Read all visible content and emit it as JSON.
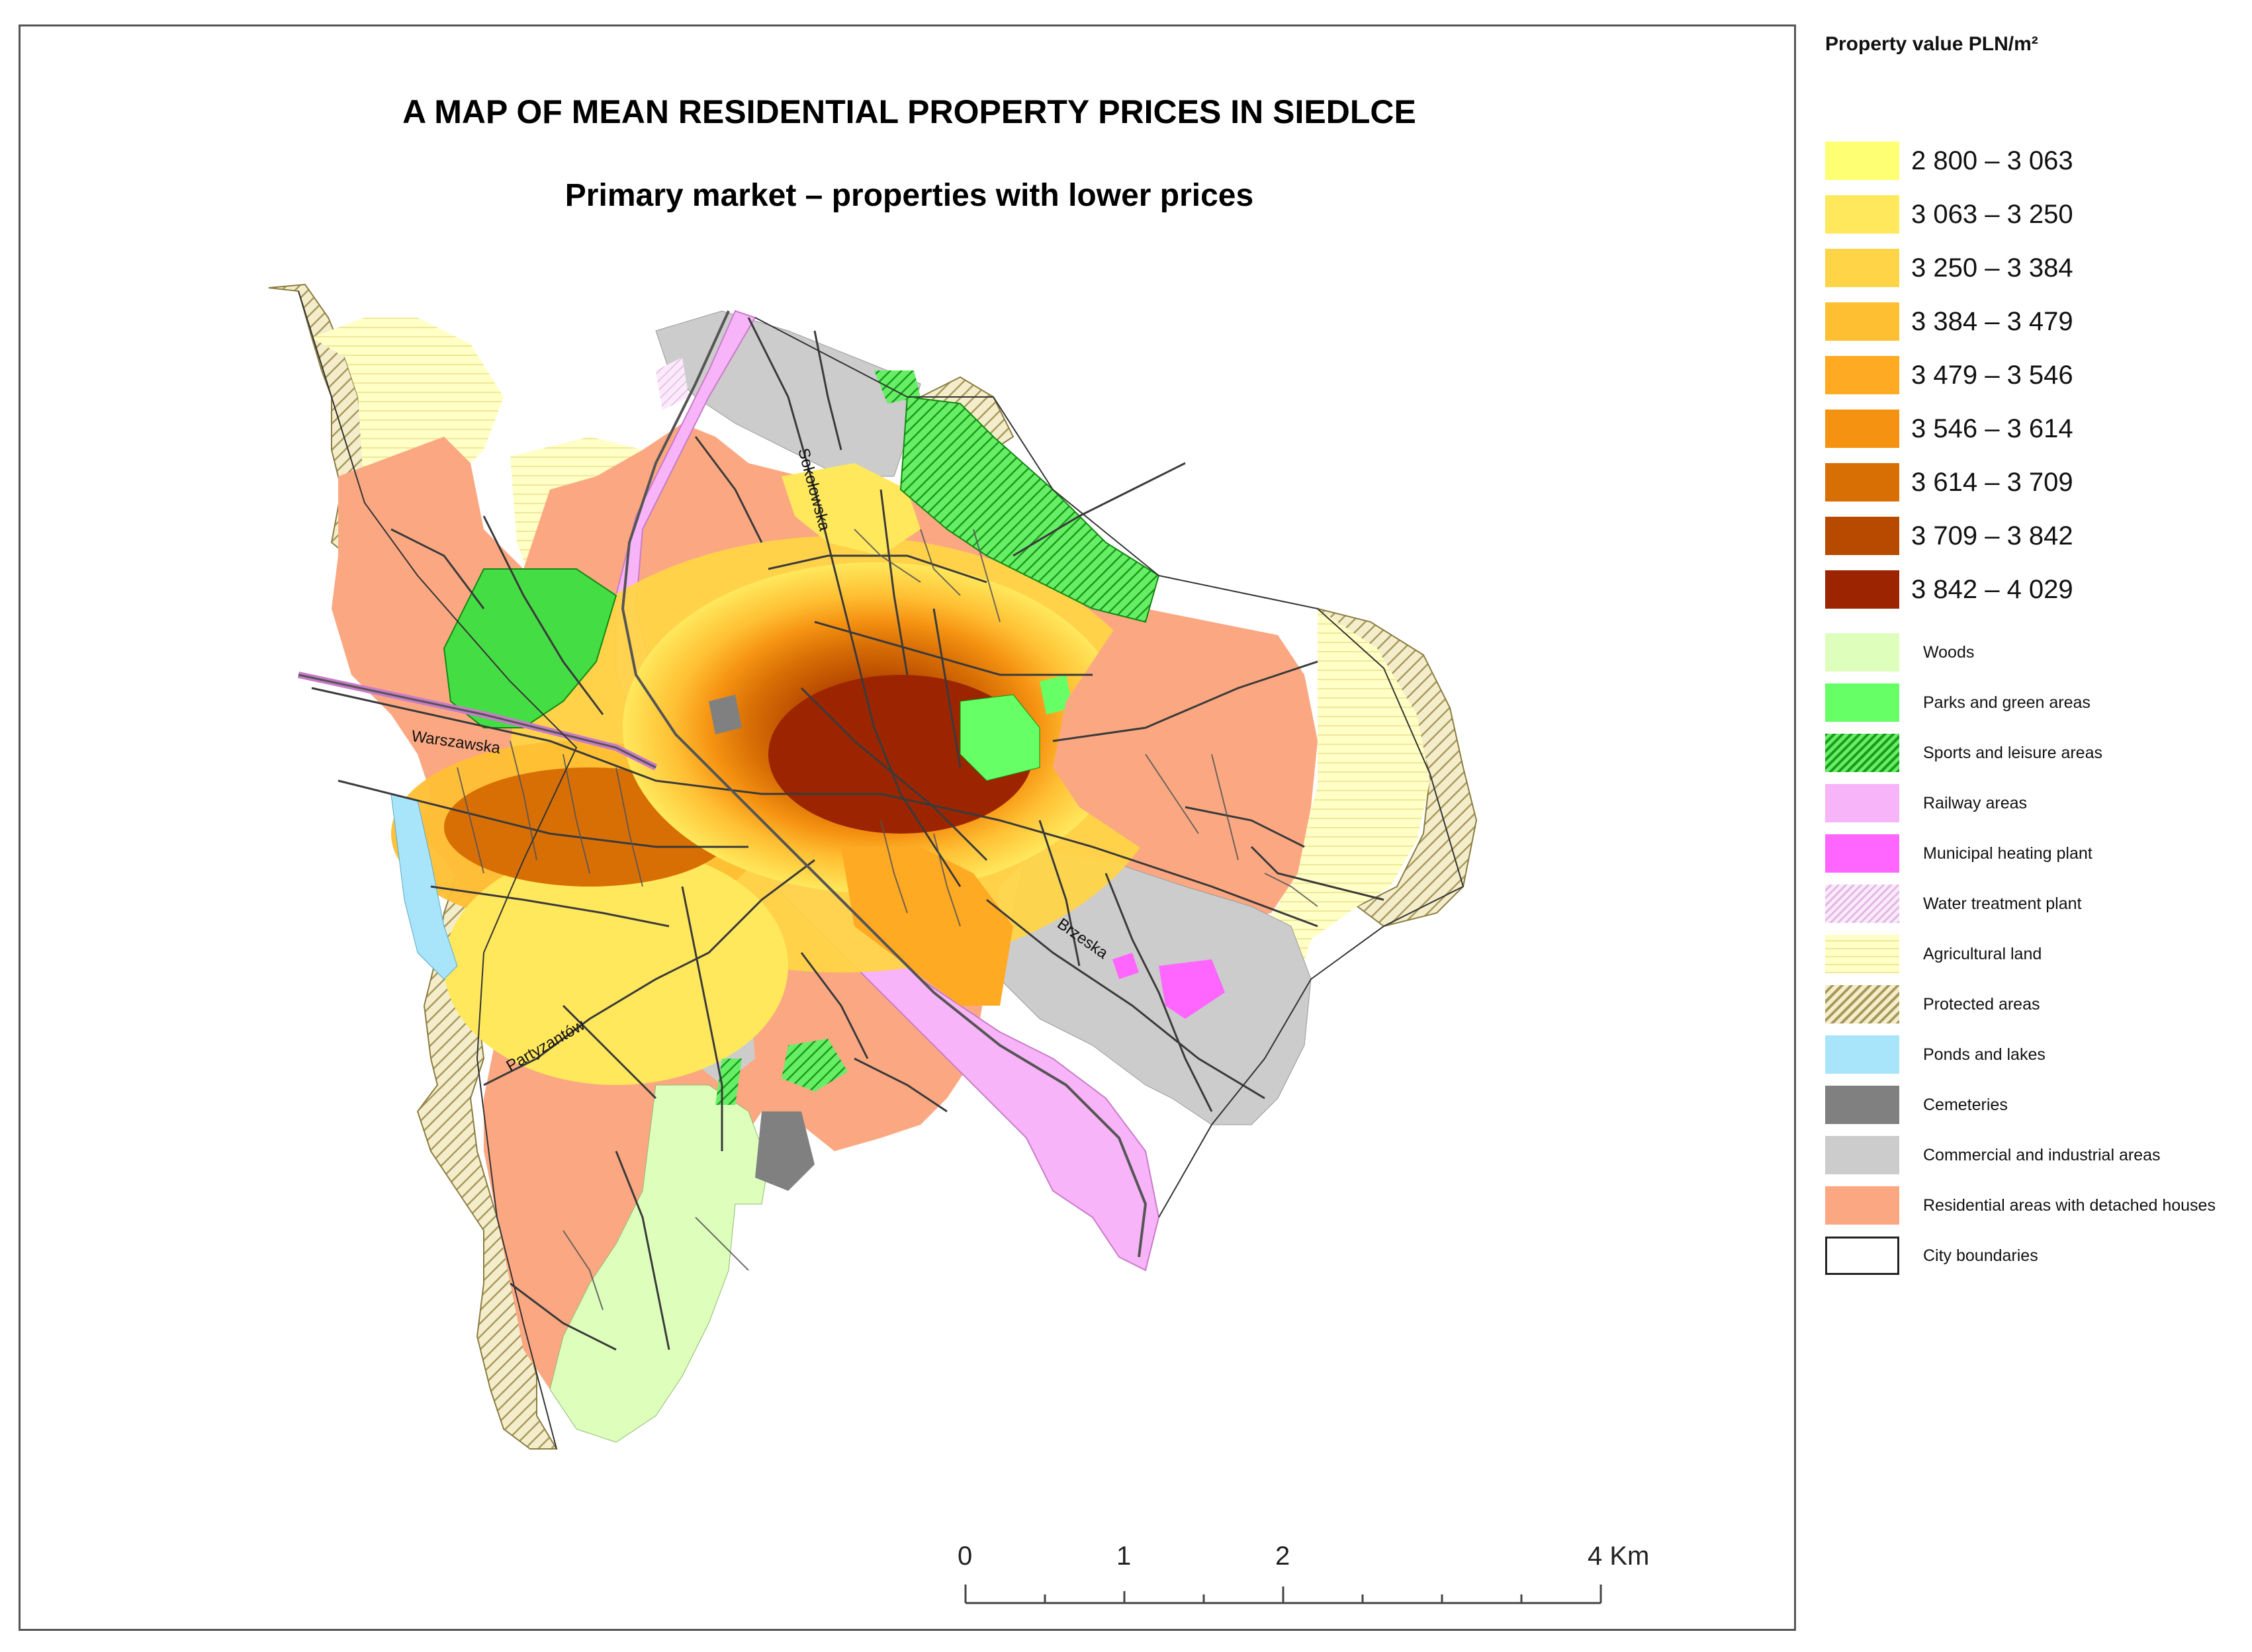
{
  "map": {
    "title": "A MAP OF MEAN RESIDENTIAL PROPERTY PRICES IN SIEDLCE",
    "subtitle": "Primary market – properties with lower prices",
    "streets": [
      "Sokołowska",
      "Warszawska",
      "Brzeska",
      "Partyzantów"
    ]
  },
  "scale": {
    "ticks": [
      "0",
      "1",
      "2",
      "4 Km"
    ]
  },
  "legend": {
    "title": "Property value PLN/m²",
    "price_classes": [
      {
        "label": "2 800 – 3 063",
        "color": "#ffff73"
      },
      {
        "label": "3 063 – 3 250",
        "color": "#ffe85c"
      },
      {
        "label": "3 250 – 3 384",
        "color": "#ffd447"
      },
      {
        "label": "3 384 – 3 479",
        "color": "#ffbf33"
      },
      {
        "label": "3 479 – 3 546",
        "color": "#ffaa22"
      },
      {
        "label": "3 546 – 3 614",
        "color": "#f59211"
      },
      {
        "label": "3 614 – 3 709",
        "color": "#d86f05"
      },
      {
        "label": "3 709 – 3 842",
        "color": "#b84a00"
      },
      {
        "label": "3 842 – 4 029",
        "color": "#9c2500"
      }
    ],
    "categories": [
      {
        "label": "Woods",
        "color": "#ddffbb",
        "icon": "woods-icon"
      },
      {
        "label": "Parks and  green areas",
        "color": "#66ff66",
        "icon": "park-icon"
      },
      {
        "label": "Sports and leisure areas",
        "color": "#33dd33",
        "icon": "sports-hatch-icon"
      },
      {
        "label": "Railway areas",
        "color": "#f8b4f8",
        "icon": "railway-icon"
      },
      {
        "label": "Municipal heating plant",
        "color": "#ff66ff",
        "icon": "heating-plant-icon"
      },
      {
        "label": "Water treatment plant",
        "color": "#f3d6f3",
        "icon": "water-plant-hatch-icon"
      },
      {
        "label": "Agricultural land",
        "color": "#ffffc0",
        "icon": "agricultural-icon"
      },
      {
        "label": "Protected areas",
        "color": "#d2c27a",
        "icon": "protected-hatch-icon"
      },
      {
        "label": "Ponds and lakes",
        "color": "#a8e4fa",
        "icon": "water-icon"
      },
      {
        "label": "Cemeteries",
        "color": "#808080",
        "icon": "cemetery-icon"
      },
      {
        "label": "Commercial and industrial areas",
        "color": "#cccccc",
        "icon": "industrial-icon"
      },
      {
        "label": "Residential areas with detached houses",
        "color": "#fba882",
        "icon": "residential-icon"
      },
      {
        "label": "City boundaries",
        "color": "#ffffff",
        "icon": "boundary-icon"
      }
    ]
  }
}
